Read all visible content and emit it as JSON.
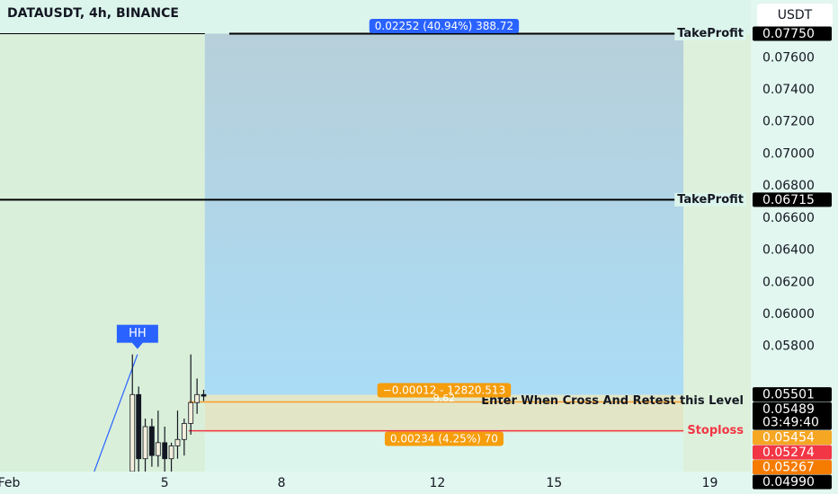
{
  "chart_data": {
    "type": "candlestick",
    "title": "DATAUSDT, 4h, BINANCE",
    "currency": "USDT",
    "xlim": [
      0.77,
      20.05
    ],
    "xticks": [
      {
        "value": 1,
        "label": "Feb"
      },
      5,
      8,
      12,
      15,
      19
    ],
    "ylim": [
      0.0502,
      0.0796
    ],
    "yticks": [
      {
        "value": 0.058,
        "label": "0.05800"
      },
      {
        "value": 0.06,
        "label": "0.06000"
      },
      {
        "value": 0.062,
        "label": "0.06200"
      },
      {
        "value": 0.064,
        "label": "0.06400"
      },
      {
        "value": 0.066,
        "label": "0.06600"
      },
      {
        "value": 0.068,
        "label": "0.06800"
      },
      {
        "value": 0.07,
        "label": "0.07000"
      },
      {
        "value": 0.072,
        "label": "0.07200"
      },
      {
        "value": 0.074,
        "label": "0.07400"
      },
      {
        "value": 0.076,
        "label": "0.07600"
      }
    ],
    "up_color": "#f3eedc",
    "down_color": "#131722",
    "x": [
      4.17,
      4.33,
      4.5,
      4.67,
      4.83,
      5.0,
      5.17,
      5.33,
      5.5,
      5.67,
      5.83,
      6.0
    ],
    "open": [
      0.0502,
      0.055,
      0.051,
      0.053,
      0.0512,
      0.052,
      0.051,
      0.0518,
      0.0522,
      0.0532,
      0.0545,
      0.055
    ],
    "high": [
      0.0575,
      0.0555,
      0.0535,
      0.0535,
      0.054,
      0.053,
      0.052,
      0.054,
      0.0535,
      0.0575,
      0.056,
      0.0553
    ],
    "low": [
      0.0502,
      0.0502,
      0.0502,
      0.0505,
      0.0505,
      0.0502,
      0.0502,
      0.051,
      0.0512,
      0.0525,
      0.0538,
      0.0546
    ],
    "close": [
      0.055,
      0.051,
      0.053,
      0.0512,
      0.052,
      0.051,
      0.0518,
      0.0522,
      0.0532,
      0.0545,
      0.055,
      0.0549
    ],
    "position": {
      "start": 6.03,
      "end": 18.32,
      "entry": 0.05498,
      "take_profit": 0.0775,
      "stop": 0.05264,
      "target_label": "0.02252 (40.94%) 388.72",
      "stop_label": "0.00234 (4.25%) 70",
      "entry_label": "−0.00012 - 12820.513",
      "entry_sublabel": "9.62"
    },
    "levels": [
      {
        "label": "TakeProfit",
        "value": 0.0775,
        "color": "#000000"
      },
      {
        "label": "TakeProfit",
        "value": 0.06715,
        "color": "#000000"
      },
      {
        "label": "Enter When Cross And Retest this Level",
        "value": 0.05454,
        "color": "#f59d2a"
      },
      {
        "label": "Stoploss",
        "value": 0.05274,
        "color": "#f23645"
      }
    ],
    "marker": {
      "label": "HH",
      "x": 4.3,
      "value": 0.0575,
      "color": "#2962ff"
    },
    "trendline": {
      "x": [
        3.19,
        4.3
      ],
      "values": [
        0.0502,
        0.0575
      ],
      "color": "#2962ff"
    },
    "price_tags": [
      {
        "value": 0.0775,
        "label": "0.07750",
        "color": "#000000"
      },
      {
        "value": 0.06715,
        "label": "0.06715",
        "color": "#000000"
      },
      {
        "value": 0.05501,
        "label": "0.05501",
        "color": "#000000"
      },
      {
        "value": 0.05489,
        "label": "0.05489",
        "sublabel": "03:49:40",
        "color": "#000000"
      },
      {
        "value": 0.05454,
        "label": "0.05454",
        "color": "#f5a623"
      },
      {
        "value": 0.05274,
        "label": "0.05274",
        "color": "#f23645"
      },
      {
        "value": 0.05267,
        "label": "0.05267",
        "color": "#f57c00"
      },
      {
        "value": 0.0499,
        "label": "0.04990",
        "color": "#000000"
      }
    ]
  }
}
